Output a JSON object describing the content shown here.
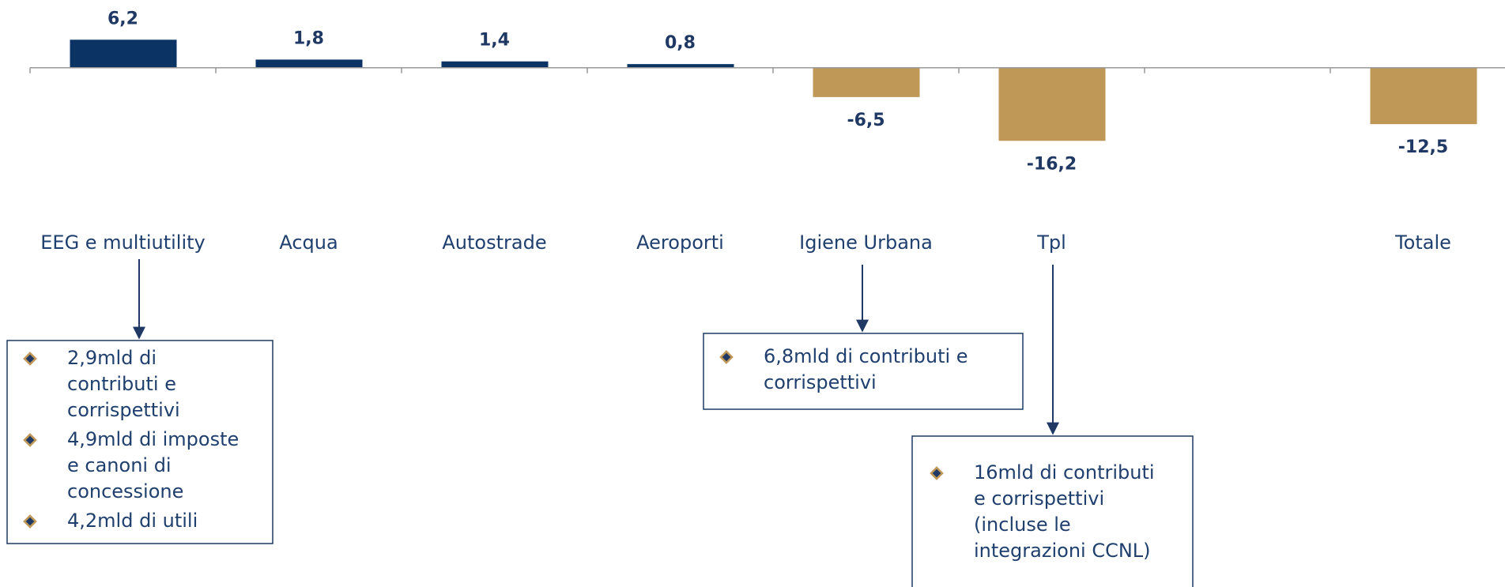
{
  "chart_data": {
    "type": "bar",
    "categories": [
      "EEG e multiutility",
      "Acqua",
      "Autostrade",
      "Aeroporti",
      "Igiene Urbana",
      "Tpl",
      null,
      "Totale"
    ],
    "values": [
      6.2,
      1.8,
      1.4,
      0.8,
      -6.5,
      -16.2,
      null,
      -12.5
    ],
    "value_labels": [
      "6,2",
      "1,8",
      "1,4",
      "0,8",
      "-6,5",
      "-16,2",
      null,
      "-12,5"
    ],
    "positive_color": "#0b3364",
    "negative_color": "#bf9858",
    "ylim": [
      -20,
      8
    ],
    "annotations": [
      {
        "items": [
          [
            "2,9mld di",
            "contributi e",
            "corrispettivi"
          ],
          [
            "4,9mld di imposte",
            "e canoni di",
            "concessione"
          ],
          [
            "4,2mld di utili"
          ]
        ]
      },
      {
        "items": [
          [
            "6,8mld di contributi e",
            "corrispettivi"
          ]
        ]
      },
      {
        "items": [
          [
            "16mld di contributi",
            "e corrispettivi",
            "(incluse le",
            "integrazioni CCNL)"
          ]
        ]
      }
    ]
  }
}
